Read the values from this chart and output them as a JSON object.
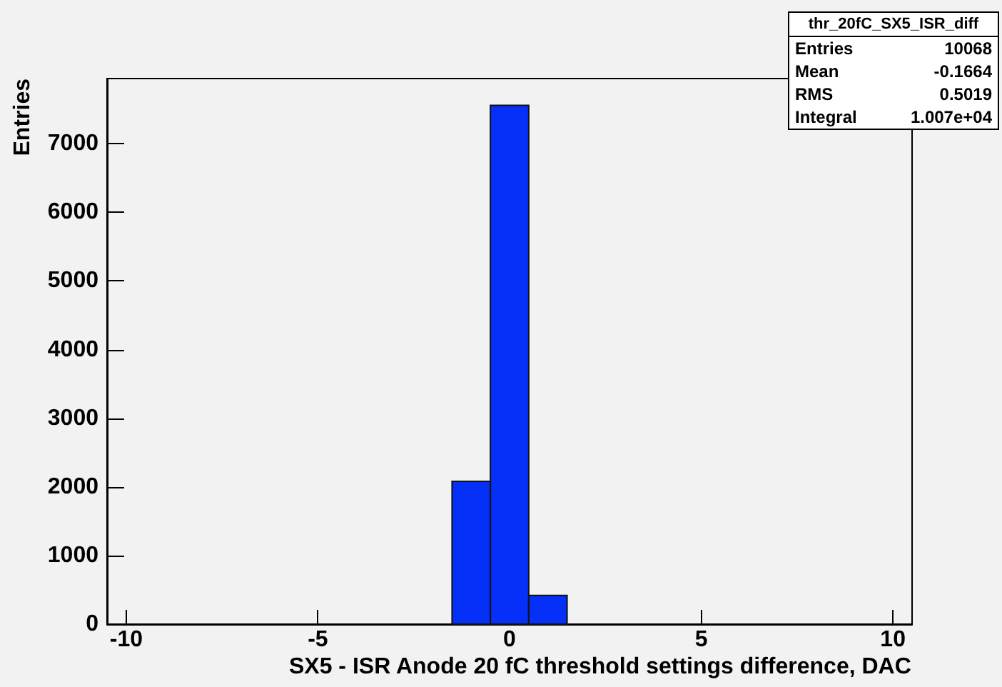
{
  "chart_data": {
    "type": "histogram",
    "xlabel": "SX5 - ISR Anode 20 fC threshold settings difference, DAC",
    "ylabel": "Entries",
    "bins": [
      -1.5,
      -0.5,
      0.5,
      1.5
    ],
    "values": [
      2080,
      7560,
      420
    ],
    "color": "#0530f8",
    "xlim": [
      -10.5,
      10.5
    ],
    "xticks": [
      -10,
      -5,
      0,
      5,
      10
    ],
    "ylim": [
      0,
      7950
    ],
    "yticks": [
      0,
      1000,
      2000,
      3000,
      4000,
      5000,
      6000,
      7000
    ],
    "grid": false,
    "annotations": [
      "thr_20fC_SX5_ISR_diff",
      "Entries",
      "10068",
      "Mean",
      "-0.1664",
      "RMS",
      "0.5019",
      "Integral",
      "1.007e+04"
    ]
  }
}
